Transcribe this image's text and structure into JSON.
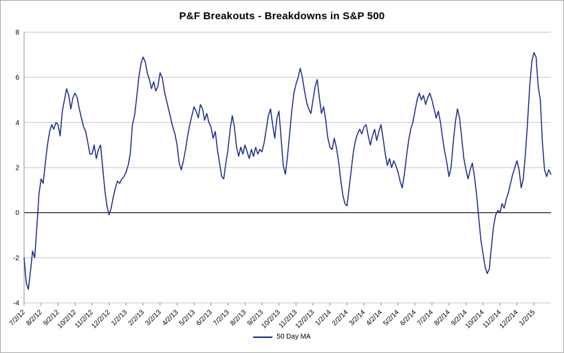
{
  "figure": {
    "background": "#FFFFFF",
    "border_color": "#ABABAB"
  },
  "legend": {
    "label": "50 Day MA"
  },
  "chart_data": {
    "type": "line",
    "title": "P&F Breakouts - Breakdowns in S&P 500",
    "xlabel": "",
    "ylabel": "",
    "ylim": [
      -4,
      8
    ],
    "yticks": [
      8,
      6,
      4,
      2,
      0,
      -2,
      -4
    ],
    "grid": true,
    "zero_axis": true,
    "legend_position": "bottom",
    "categories": [
      "7/2/12",
      "8/2/12",
      "9/2/12",
      "10/2/12",
      "11/2/12",
      "12/2/12",
      "1/2/13",
      "2/2/13",
      "3/2/13",
      "4/2/13",
      "5/2/13",
      "6/2/13",
      "7/2/13",
      "8/2/13",
      "9/2/13",
      "10/2/13",
      "11/2/13",
      "12/2/13",
      "1/2/14",
      "2/2/14",
      "3/2/14",
      "4/2/14",
      "5/2/14",
      "6/2/14",
      "7/2/14",
      "8/2/14",
      "9/2/14",
      "10/2/14",
      "11/2/14",
      "12/2/14",
      "1/2/15"
    ],
    "points_per_tick": 8,
    "colors": {
      "line": "#1B2A8C",
      "gridline": "#C6C6C6",
      "axis": "#8C8C8C",
      "zero_line": "#000000",
      "text": "#000000"
    },
    "series": [
      {
        "name": "50 Day MA",
        "color": "#1B2A8C",
        "values": [
          -2.0,
          -3.1,
          -3.4,
          -2.6,
          -1.7,
          -2.0,
          -0.7,
          0.8,
          1.5,
          1.3,
          2.2,
          3.0,
          3.6,
          3.9,
          3.7,
          4.0,
          3.9,
          3.4,
          4.5,
          5.0,
          5.5,
          5.2,
          4.6,
          5.1,
          5.3,
          5.1,
          4.6,
          4.2,
          3.8,
          3.6,
          3.1,
          2.6,
          2.6,
          3.0,
          2.4,
          2.8,
          3.0,
          2.0,
          1.0,
          0.3,
          -0.1,
          0.2,
          0.7,
          1.1,
          1.4,
          1.3,
          1.5,
          1.6,
          1.8,
          2.1,
          2.6,
          3.9,
          4.3,
          5.1,
          6.0,
          6.6,
          6.9,
          6.7,
          6.2,
          5.9,
          5.5,
          5.8,
          5.4,
          5.6,
          6.2,
          6.0,
          5.4,
          5.0,
          4.6,
          4.2,
          3.8,
          3.5,
          3.0,
          2.2,
          1.9,
          2.3,
          2.8,
          3.4,
          3.9,
          4.3,
          4.7,
          4.5,
          4.2,
          4.8,
          4.6,
          4.1,
          4.4,
          4.0,
          3.8,
          3.3,
          3.6,
          2.8,
          2.2,
          1.6,
          1.5,
          2.2,
          2.8,
          3.7,
          4.3,
          3.8,
          2.9,
          2.5,
          2.9,
          2.6,
          3.0,
          2.7,
          2.4,
          2.8,
          2.5,
          2.9,
          2.6,
          2.8,
          2.7,
          3.1,
          3.7,
          4.3,
          4.6,
          3.9,
          3.3,
          4.2,
          4.5,
          3.3,
          2.1,
          1.7,
          2.5,
          3.5,
          4.5,
          5.3,
          5.7,
          6.0,
          6.4,
          6.0,
          5.4,
          4.9,
          4.6,
          4.4,
          5.0,
          5.6,
          5.9,
          5.1,
          4.4,
          4.7,
          4.1,
          3.3,
          2.9,
          2.8,
          3.3,
          2.9,
          2.3,
          1.5,
          0.8,
          0.4,
          0.3,
          1.1,
          1.9,
          2.7,
          3.2,
          3.5,
          3.7,
          3.5,
          3.8,
          3.9,
          3.4,
          3.0,
          3.4,
          3.7,
          3.2,
          3.6,
          3.9,
          3.3,
          2.6,
          2.1,
          2.4,
          2.0,
          2.3,
          2.1,
          1.8,
          1.4,
          1.1,
          1.7,
          2.5,
          3.2,
          3.7,
          4.0,
          4.5,
          5.0,
          5.3,
          5.0,
          5.2,
          4.8,
          5.1,
          5.3,
          5.0,
          4.6,
          4.2,
          4.5,
          4.0,
          3.3,
          2.7,
          2.2,
          1.6,
          2.0,
          3.1,
          4.0,
          4.6,
          4.2,
          3.3,
          2.4,
          1.9,
          1.5,
          1.9,
          2.2,
          1.6,
          0.8,
          -0.2,
          -1.2,
          -1.8,
          -2.4,
          -2.7,
          -2.5,
          -1.5,
          -0.6,
          -0.1,
          0.1,
          0.0,
          0.4,
          0.2,
          0.6,
          0.9,
          1.3,
          1.7,
          2.0,
          2.3,
          1.9,
          1.1,
          1.5,
          2.6,
          4.0,
          5.6,
          6.7,
          7.1,
          6.9,
          5.6,
          5.0,
          3.1,
          1.9,
          1.6,
          1.9,
          1.7
        ]
      }
    ]
  }
}
